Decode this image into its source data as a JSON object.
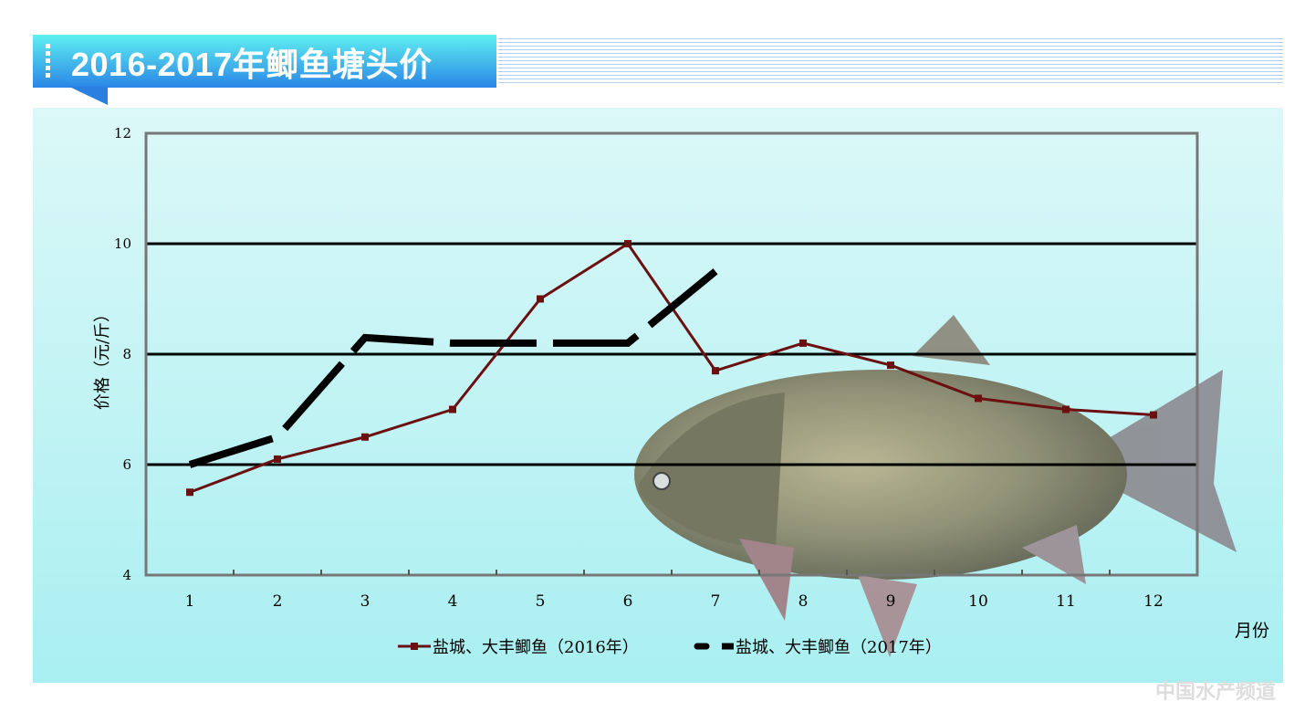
{
  "header": {
    "title": "2016-2017年鲫鱼塘头价"
  },
  "watermark": "中国水产频道",
  "chart_data": {
    "type": "line",
    "title": "2016-2017年鲫鱼塘头价",
    "xlabel": "月份",
    "ylabel": "价格（元/斤）",
    "categories": [
      "1",
      "2",
      "3",
      "4",
      "5",
      "6",
      "7",
      "8",
      "9",
      "10",
      "11",
      "12"
    ],
    "ylim": [
      4,
      12
    ],
    "yticks": [
      "4",
      "6",
      "8",
      "10",
      "12"
    ],
    "grid": true,
    "legend": "bottom",
    "series": [
      {
        "name": "盐城、大丰鲫鱼（2016年）",
        "color": "#6b1010",
        "style": "solid-marker",
        "values": [
          5.5,
          6.1,
          6.5,
          7.0,
          9.0,
          10.0,
          7.7,
          8.2,
          7.8,
          7.2,
          7.0,
          6.9
        ]
      },
      {
        "name": "盐城、大丰鲫鱼（2017年）",
        "color": "#000000",
        "style": "dashed",
        "values": [
          6.0,
          6.5,
          8.3,
          8.2,
          8.2,
          8.2,
          9.5,
          null,
          null,
          null,
          null,
          null
        ]
      }
    ]
  }
}
